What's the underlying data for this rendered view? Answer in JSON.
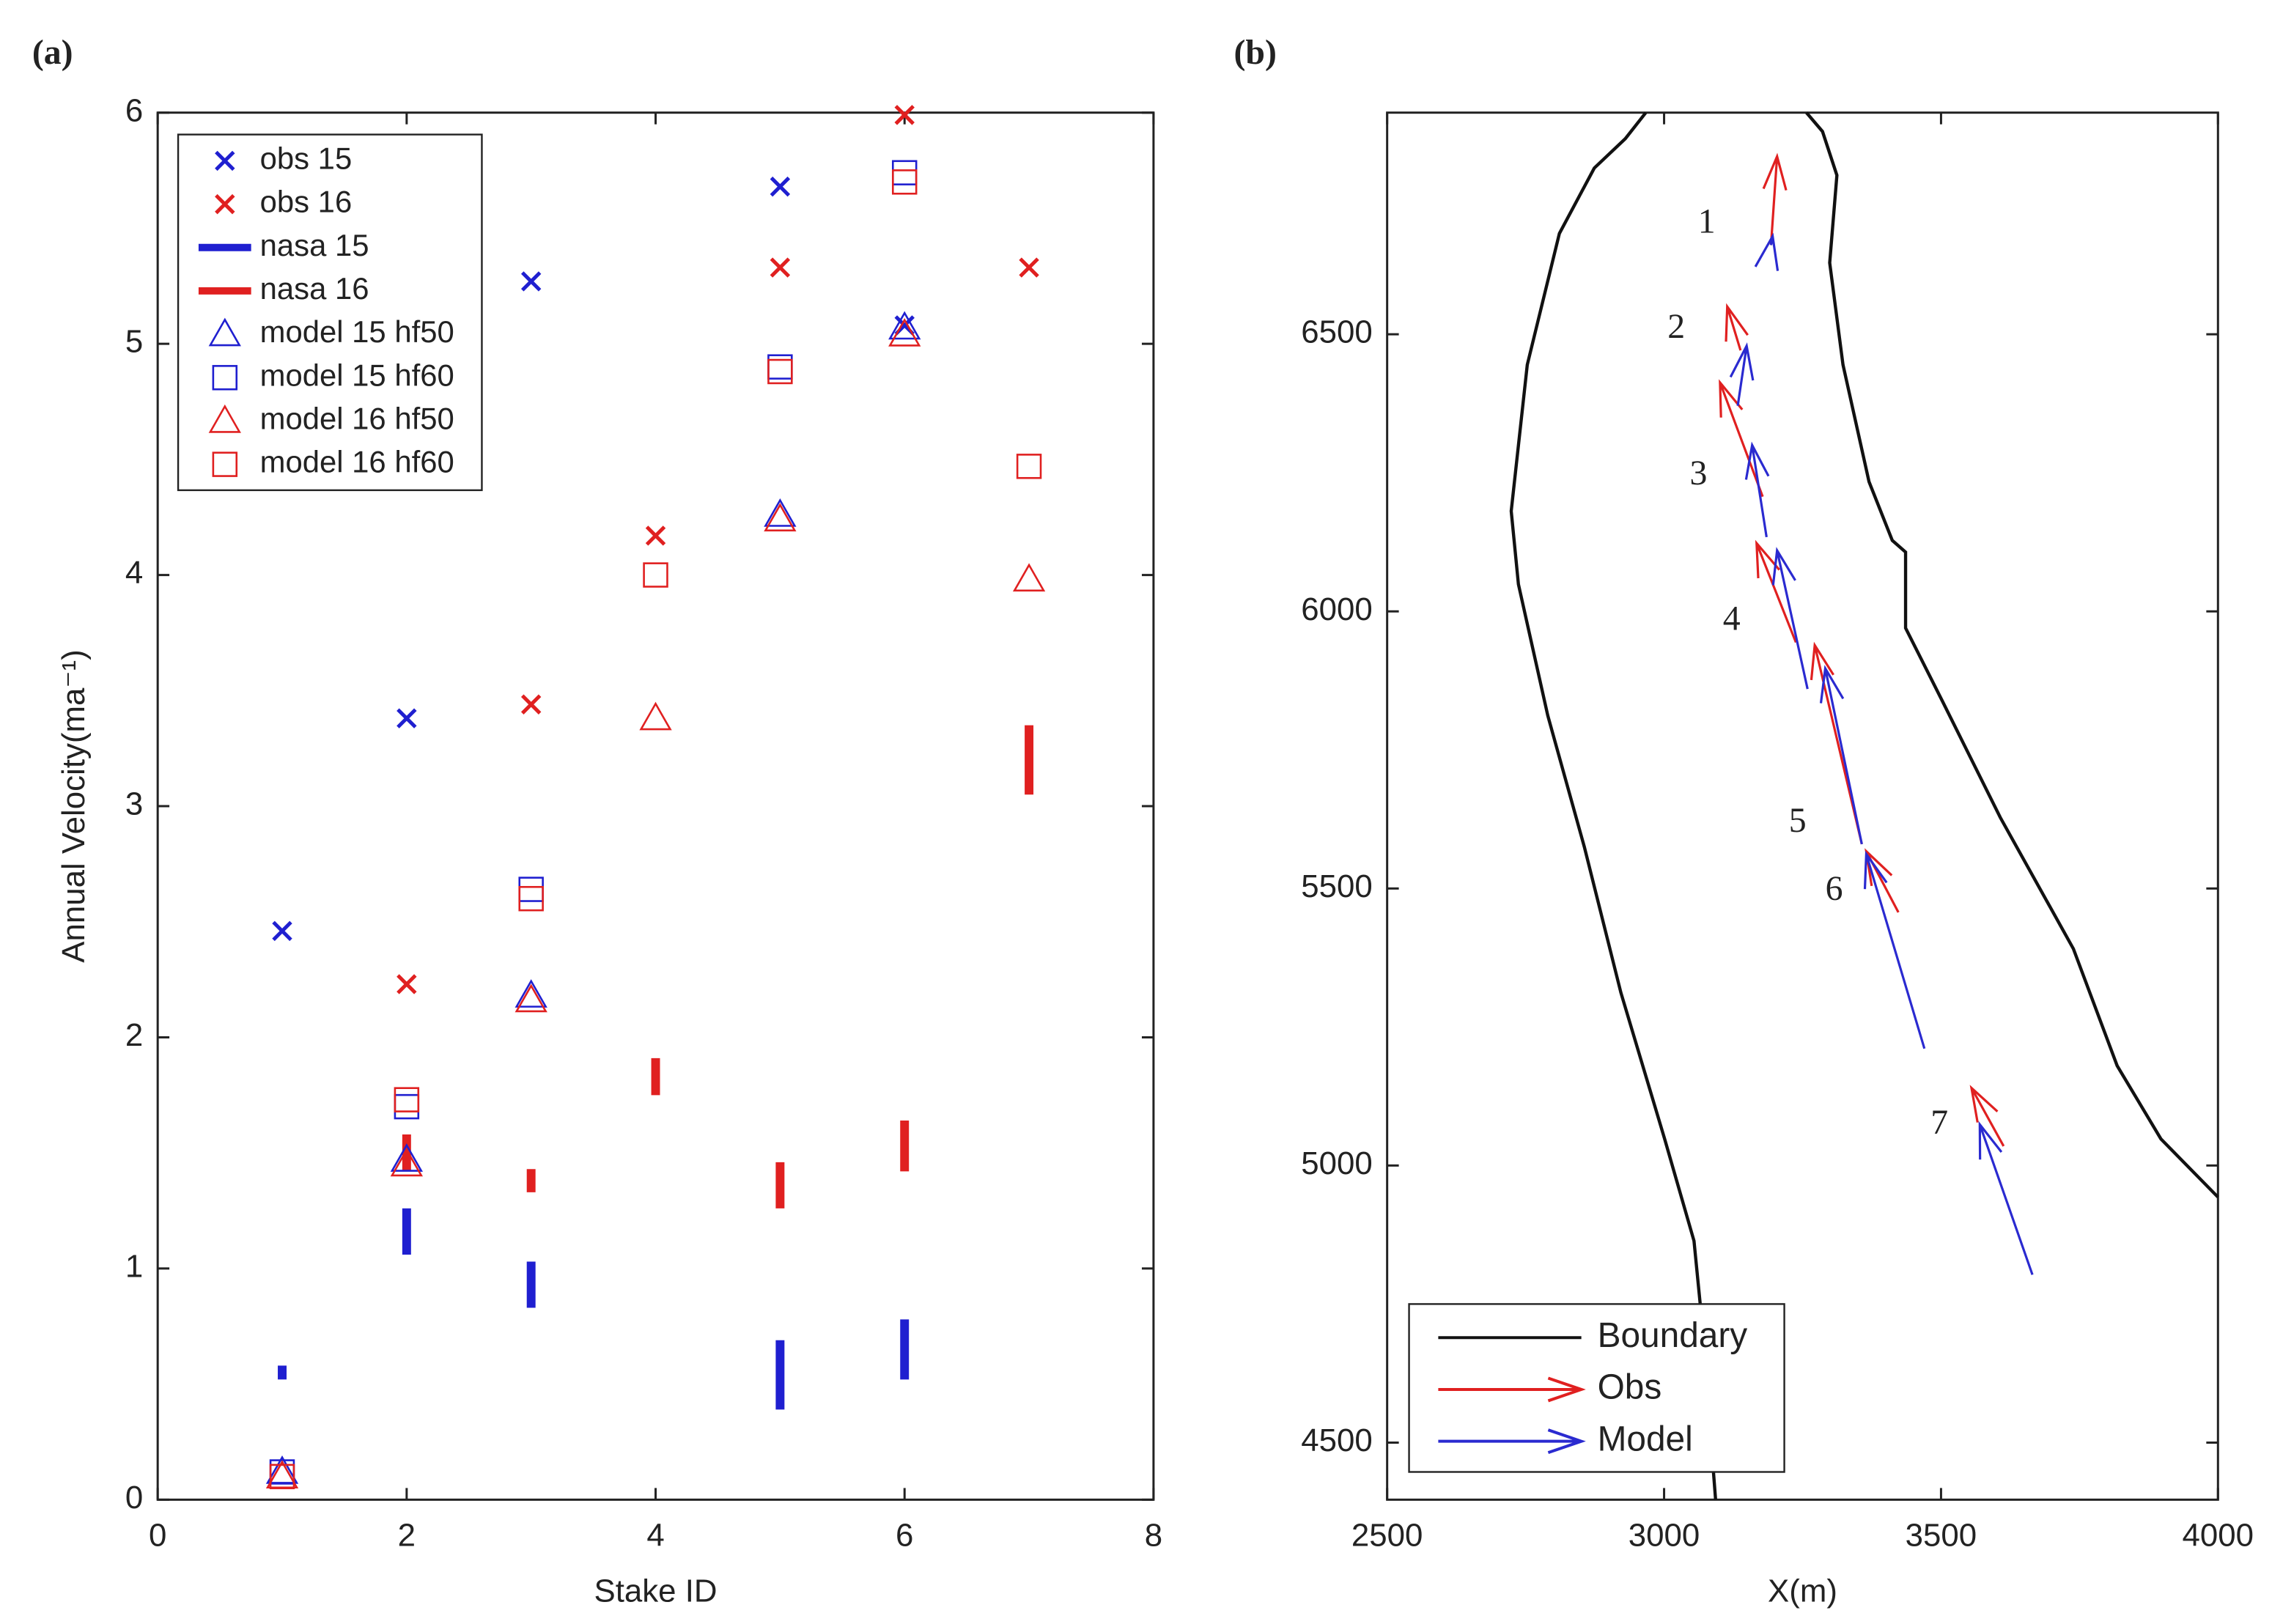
{
  "chart_data": [
    {
      "type": "scatter",
      "panel_label": "(a)",
      "xlabel": "Stake ID",
      "ylabel": "Annual Velocity(ma⁻¹)",
      "xlim": [
        0,
        8
      ],
      "xticks": [
        0,
        2,
        4,
        6,
        8
      ],
      "ylim": [
        0,
        6
      ],
      "yticks": [
        0,
        1,
        2,
        3,
        4,
        5,
        6
      ],
      "legend": "upper left",
      "series": [
        {
          "name": "obs 15",
          "color": "#1f1fd0",
          "marker": "x",
          "x": [
            1,
            2,
            3,
            5,
            6
          ],
          "values": [
            2.46,
            3.38,
            5.27,
            5.68,
            5.08
          ]
        },
        {
          "name": "obs 16",
          "color": "#e02020",
          "marker": "x",
          "x": [
            2,
            3,
            4,
            5,
            6,
            7
          ],
          "values": [
            2.23,
            3.44,
            4.17,
            5.33,
            5.99,
            5.33
          ]
        },
        {
          "name": "nasa 15",
          "color": "#1f1fd0",
          "marker": "bar",
          "x": [
            1,
            2,
            3,
            5,
            6
          ],
          "values": [
            0.55,
            1.16,
            0.93,
            0.54,
            0.65
          ],
          "errors": [
            0.03,
            0.1,
            0.1,
            0.15,
            0.13
          ]
        },
        {
          "name": "nasa 16",
          "color": "#e02020",
          "marker": "bar",
          "x": [
            2,
            3,
            4,
            5,
            6,
            7
          ],
          "values": [
            1.5,
            1.38,
            1.83,
            1.36,
            1.53,
            3.2
          ],
          "errors": [
            0.08,
            0.05,
            0.08,
            0.1,
            0.11,
            0.15
          ]
        },
        {
          "name": "model 15 hf50",
          "color": "#1f1fd0",
          "marker": "triangle",
          "x": [
            1,
            2,
            3,
            5,
            6
          ],
          "values": [
            0.12,
            1.47,
            2.18,
            4.26,
            5.07
          ]
        },
        {
          "name": "model 15 hf60",
          "color": "#1f1fd0",
          "marker": "square",
          "x": [
            1,
            2,
            3,
            5,
            6
          ],
          "values": [
            0.12,
            1.7,
            2.64,
            4.9,
            5.74
          ]
        },
        {
          "name": "model 16 hf50",
          "color": "#e02020",
          "marker": "triangle",
          "x": [
            1,
            2,
            3,
            4,
            5,
            6,
            7
          ],
          "values": [
            0.1,
            1.45,
            2.16,
            3.38,
            4.24,
            5.04,
            3.98
          ]
        },
        {
          "name": "model 16 hf60",
          "color": "#e02020",
          "marker": "square",
          "x": [
            1,
            2,
            3,
            4,
            5,
            6,
            7
          ],
          "values": [
            0.1,
            1.73,
            2.6,
            4.0,
            4.88,
            5.7,
            4.47
          ]
        }
      ]
    },
    {
      "type": "vector",
      "panel_label": "(b)",
      "xlabel": "X(m)",
      "xlim": [
        2500,
        4000
      ],
      "xticks": [
        2500,
        3000,
        3500,
        4000
      ],
      "ylim": [
        4397,
        6900
      ],
      "yticks": [
        4500,
        5000,
        5500,
        6000,
        6500
      ],
      "legend": "lower left",
      "boundary": {
        "name": "Boundary",
        "color": "#111111",
        "pieces": [
          {
            "x": [
              2967,
              2930,
              2874,
              2811,
              2753,
              2724,
              2737,
              2790,
              2856,
              2922,
              3001,
              3054,
              3067,
              3093
            ],
            "y": [
              6900,
              6853,
              6800,
              6682,
              6445,
              6181,
              6049,
              5812,
              5575,
              5312,
              5048,
              4864,
              4732,
              4397
            ]
          },
          {
            "x": [
              3257,
              3286,
              3312,
              3299,
              3323,
              3370,
              3412,
              3436,
              3436,
              3502,
              3607,
              3739,
              3818,
              3897,
              4000
            ],
            "y": [
              6900,
              6866,
              6787,
              6629,
              6445,
              6234,
              6128,
              6107,
              5970,
              5839,
              5628,
              5391,
              5180,
              5048,
              4943
            ]
          }
        ]
      },
      "arrows": [
        {
          "name": "Obs",
          "color": "#e02020",
          "x": [
            3193,
            3138,
            3178,
            3238,
            3357,
            3423,
            3613
          ],
          "y": [
            6661,
            6471,
            6207,
            5944,
            5580,
            5457,
            5035
          ],
          "x_end": [
            3204,
            3114,
            3101,
            3167,
            3272,
            3365,
            3555
          ],
          "y_end": [
            6821,
            6550,
            6413,
            6123,
            5939,
            5567,
            5140
          ]
        },
        {
          "name": "Model",
          "color": "#2a2ad0",
          "x": [
            3193,
            3133,
            3185,
            3259,
            3357,
            3470,
            3665
          ],
          "y": [
            6661,
            6371,
            6134,
            5860,
            5580,
            5211,
            4803
          ],
          "x_end": [
            3196,
            3149,
            3159,
            3204,
            3291,
            3365,
            3570
          ],
          "y_end": [
            6677,
            6479,
            6300,
            6110,
            5897,
            5562,
            5074
          ]
        }
      ],
      "stake_labels": [
        "1",
        "2",
        "3",
        "4",
        "5",
        "6",
        "7"
      ]
    }
  ]
}
